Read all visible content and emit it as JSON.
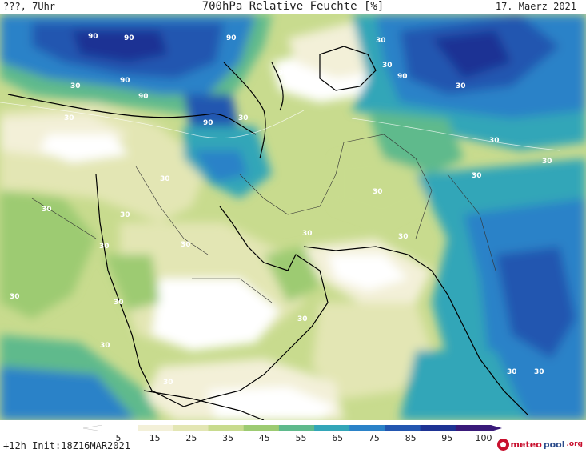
{
  "header": {
    "left": "???, 7Uhr",
    "title": "700hPa Relative Feuchte [%]",
    "date": "17. Maerz 2021"
  },
  "map": {
    "contour_labels": [
      "90",
      "30"
    ]
  },
  "legend": {
    "ticks": [
      "5",
      "15",
      "25",
      "35",
      "45",
      "55",
      "65",
      "75",
      "85",
      "95",
      "100"
    ],
    "colors": [
      "#ffffff",
      "#f3f0d8",
      "#e3e6b4",
      "#c8db8e",
      "#9dcb72",
      "#5fba8c",
      "#33a6b8",
      "#2b82c8",
      "#2356b0",
      "#1e3394",
      "#3a1a7a"
    ]
  },
  "footer": {
    "init": "+12h Init:18Z16MAR2021"
  },
  "logo": {
    "brand_a": "meteo",
    "brand_b": "pool",
    "brand_c": ".org"
  }
}
